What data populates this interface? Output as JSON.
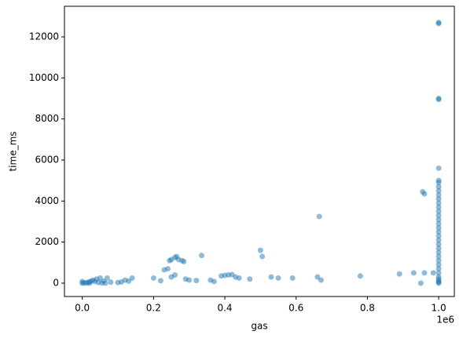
{
  "chart_data": {
    "type": "scatter",
    "x_label": "gas",
    "y_label": "time_ms",
    "x_offset_label": "1e6",
    "xlim": [
      -0.05,
      1.044
    ],
    "ylim": [
      -650,
      13490
    ],
    "xticks": [
      {
        "value": 0,
        "label": "0.0"
      },
      0.2,
      0.4,
      0.6,
      0.8,
      {
        "value": 1,
        "label": "1.0"
      }
    ],
    "yticks": [
      0,
      2000,
      4000,
      6000,
      8000,
      10000,
      12000
    ],
    "series": [
      {
        "name": "time_ms",
        "color": "#1f77b4",
        "x": [
          0.0,
          0.005,
          0.01,
          0.015,
          0.02,
          0.025,
          0.03,
          0.035,
          0.04,
          0.05,
          0.06,
          0.07,
          0.08,
          0.1,
          0.11,
          0.12,
          0.13,
          0.14,
          0.0,
          0.02,
          0.045,
          0.055,
          0.065,
          0.2,
          0.22,
          0.23,
          0.24,
          0.245,
          0.25,
          0.26,
          0.265,
          0.27,
          0.28,
          0.285,
          0.26,
          0.25,
          0.29,
          0.3,
          0.32,
          0.335,
          0.36,
          0.37,
          0.39,
          0.4,
          0.41,
          0.42,
          0.43,
          0.44,
          0.47,
          0.5,
          0.505,
          0.53,
          0.55,
          0.59,
          0.66,
          0.665,
          0.67,
          0.78,
          0.89,
          0.93,
          0.95,
          0.96,
          0.955,
          0.96,
          0.985,
          1,
          1,
          1,
          1,
          1,
          1,
          1,
          1,
          1,
          1,
          1,
          1,
          1,
          1,
          1,
          1,
          1,
          1,
          1,
          1,
          1,
          1,
          1,
          1,
          1,
          1,
          1,
          1,
          1,
          1,
          1,
          1,
          1,
          1
        ],
        "values": [
          0,
          20,
          10,
          40,
          60,
          100,
          150,
          80,
          200,
          250,
          100,
          250,
          50,
          30,
          60,
          150,
          100,
          250,
          80,
          0,
          30,
          10,
          0,
          250,
          120,
          650,
          700,
          1100,
          1150,
          1250,
          1300,
          1150,
          1100,
          1050,
          400,
          300,
          200,
          150,
          130,
          1350,
          150,
          80,
          350,
          380,
          400,
          420,
          300,
          250,
          200,
          1600,
          1300,
          300,
          250,
          250,
          300,
          3250,
          150,
          350,
          450,
          500,
          0,
          500,
          4450,
          4350,
          500,
          0,
          50,
          100,
          200,
          300,
          500,
          700,
          900,
          1100,
          1300,
          1500,
          1700,
          1900,
          2100,
          2300,
          2500,
          2700,
          2900,
          3100,
          3300,
          3500,
          3700,
          3900,
          4100,
          4300,
          4500,
          4700,
          4900,
          5000,
          5600,
          8950,
          9000,
          12650,
          12700
        ]
      }
    ]
  }
}
